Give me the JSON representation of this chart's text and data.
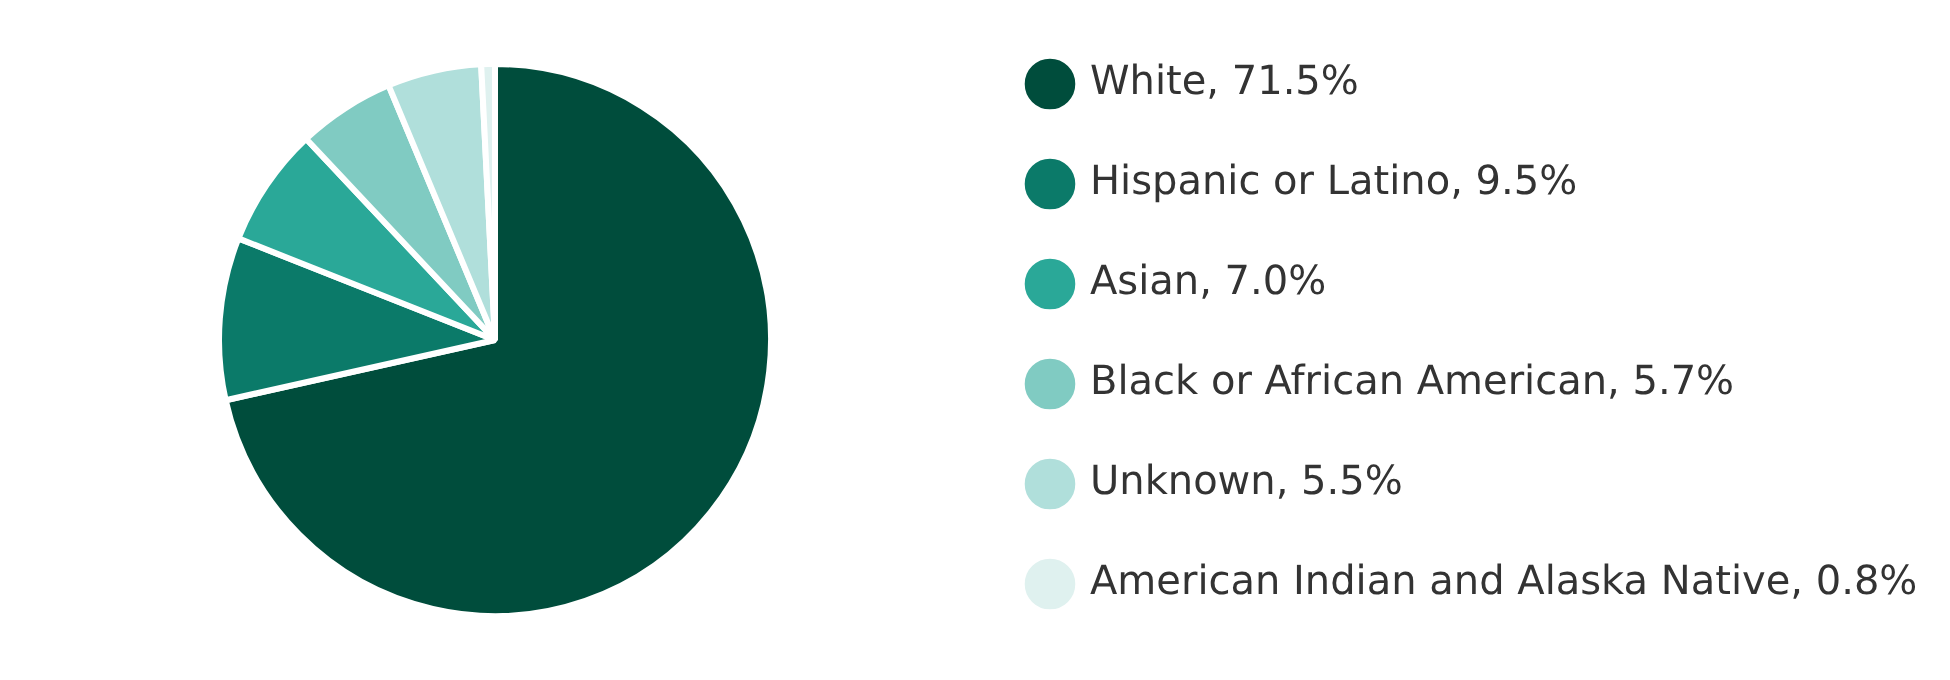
{
  "chart_data": {
    "type": "pie",
    "categories": [
      "White, 71.5%",
      "Hispanic or Latino, 9.5%",
      "Asian, 7.0%",
      "Black or African American, 5.7%",
      "Unknown, 5.5%",
      "American Indian and Alaska Native, 0.8%"
    ],
    "values": [
      71.5,
      9.5,
      7.0,
      5.7,
      5.5,
      0.8
    ],
    "colors": [
      "#004d3c",
      "#0b7a69",
      "#2aa898",
      "#80cbc2",
      "#b0dfdb",
      "#dff1ef"
    ],
    "legend": "right"
  }
}
